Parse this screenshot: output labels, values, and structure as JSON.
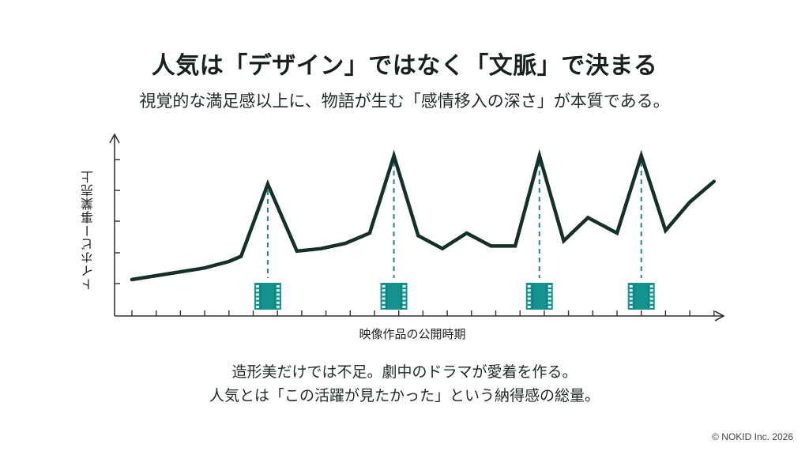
{
  "header": {
    "title": "人気は「デザイン」ではなく「文脈」で決まる",
    "subtitle": "視覚的な満足感以上に、物語が生む「感情移入の深さ」が本質である。"
  },
  "captions": [
    "造形美だけでは不足。劇中のドラマが愛着を作る。",
    "人気とは「この活躍が見たかった」という納得感の総量。"
  ],
  "footer": {
    "copyright": "© NOKID Inc. 2026"
  },
  "colors": {
    "line": "#15302b",
    "accent": "#13928f",
    "axis": "#333333"
  },
  "chart_data": {
    "type": "line",
    "title": "人気は「デザイン」ではなく「文脈」で決まる",
    "subtitle": "視覚的な満足感以上に、物語が生む「感情移入の深さ」が本質である。",
    "xlabel": "映像作品の公開時期",
    "ylabel": "トイホビー事業売上",
    "x_tick_labels_shown": false,
    "y_tick_labels_shown": false,
    "grid": false,
    "series": [
      {
        "name": "トイホビー事業売上",
        "x": [
          0,
          1,
          2,
          3,
          4,
          4.5,
          5.6,
          6.8,
          7.8,
          8.8,
          9.8,
          10.8,
          11.8,
          12.8,
          13.8,
          14.8,
          15.8,
          16.8,
          17.8,
          18.8,
          20,
          21,
          22,
          23,
          24
        ],
        "values": [
          0.8,
          0.95,
          1.1,
          1.25,
          1.5,
          1.7,
          4.5,
          1.9,
          2.0,
          2.2,
          2.6,
          5.6,
          2.5,
          2.0,
          2.6,
          2.1,
          2.1,
          5.6,
          2.3,
          3.2,
          2.6,
          5.6,
          2.7,
          3.8,
          4.6
        ]
      }
    ],
    "ylim": [
      0,
      6
    ],
    "annotations": [
      {
        "type": "film-release-marker",
        "x": 5.6,
        "label": "映像作品公開"
      },
      {
        "type": "film-release-marker",
        "x": 10.8,
        "label": "映像作品公開"
      },
      {
        "type": "film-release-marker",
        "x": 16.8,
        "label": "映像作品公開"
      },
      {
        "type": "film-release-marker",
        "x": 21,
        "label": "映像作品公開"
      }
    ]
  }
}
